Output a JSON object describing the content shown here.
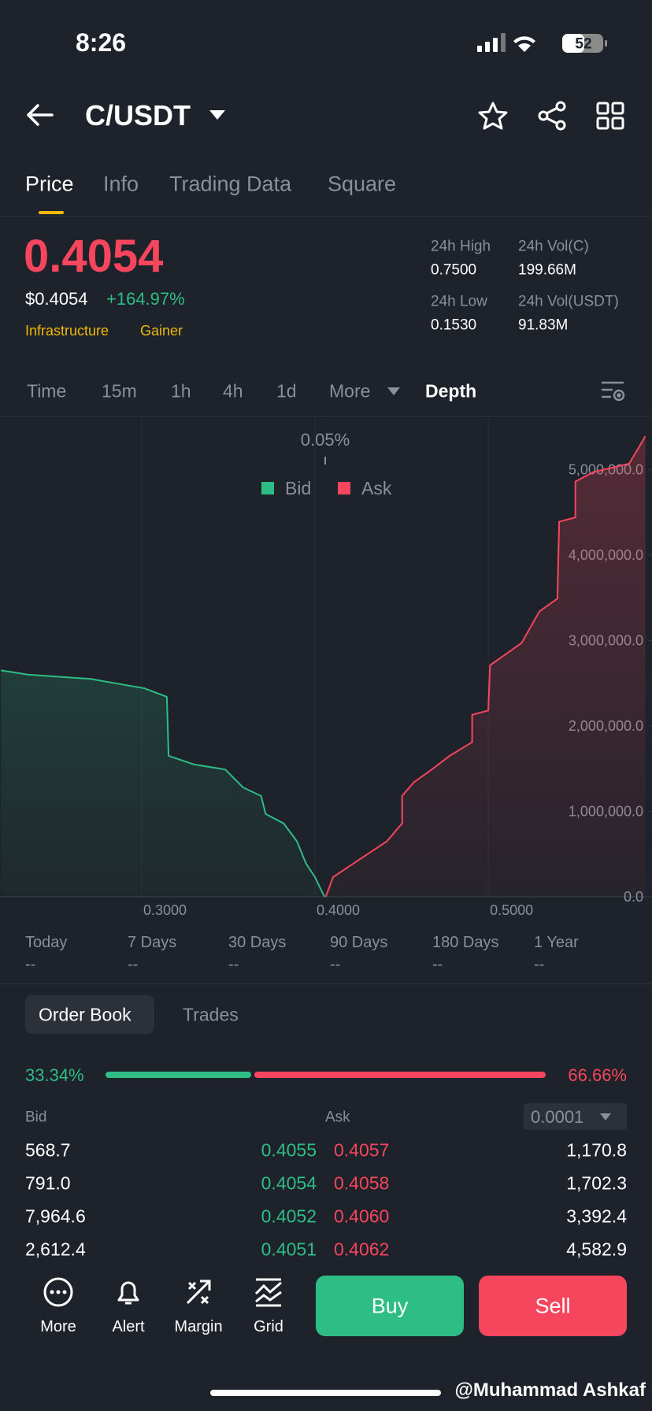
{
  "status_bar": {
    "time": "8:26",
    "battery": "52"
  },
  "header": {
    "pair": "C/USDT"
  },
  "tabs": [
    "Price",
    "Info",
    "Trading Data",
    "Square"
  ],
  "price": {
    "last": "0.4054",
    "usd": "$0.4054",
    "change": "+164.97%",
    "tags": [
      "Infrastructure",
      "Gainer"
    ]
  },
  "stats": [
    {
      "label": "24h High",
      "value": "0.7500"
    },
    {
      "label": "24h Vol(C)",
      "value": "199.66M"
    },
    {
      "label": "24h Low",
      "value": "0.1530"
    },
    {
      "label": "24h Vol(USDT)",
      "value": "91.83M"
    }
  ],
  "intervals": [
    "Time",
    "15m",
    "1h",
    "4h",
    "1d",
    "More",
    "Depth"
  ],
  "chart_data": {
    "type": "line",
    "spread_label": "0.05%",
    "series": [
      {
        "name": "Bid",
        "color": "#2ebd85",
        "x": [
          0.2187,
          0.2342,
          0.2705,
          0.3016,
          0.3145,
          0.3155,
          0.3301,
          0.3482,
          0.3585,
          0.3689,
          0.3715,
          0.3819,
          0.3896,
          0.3948,
          0.4,
          0.4055
        ],
        "values": [
          2650000,
          2600000,
          2550000,
          2440000,
          2340000,
          1650000,
          1550000,
          1490000,
          1280000,
          1180000,
          970000,
          860000,
          650000,
          390000,
          230000,
          0
        ]
      },
      {
        "name": "Ask",
        "color": "#f6465d",
        "x": [
          0.4062,
          0.4104,
          0.4259,
          0.4415,
          0.4503,
          0.4503,
          0.457,
          0.4674,
          0.4777,
          0.4907,
          0.4907,
          0.5,
          0.501,
          0.5192,
          0.5295,
          0.5399,
          0.5409,
          0.5503,
          0.5503,
          0.5606,
          0.5813,
          0.5907
        ],
        "values": [
          0,
          230000,
          440000,
          650000,
          860000,
          1180000,
          1340000,
          1490000,
          1650000,
          1810000,
          2130000,
          2180000,
          2710000,
          2970000,
          3340000,
          3490000,
          4390000,
          4440000,
          4860000,
          4970000,
          5070000,
          5390000
        ]
      }
    ],
    "xlim": [
      0.2182,
      0.5945
    ],
    "ylim": [
      0,
      5630000
    ],
    "xticks": [
      {
        "value": 0.3,
        "label": "0.3000"
      },
      {
        "value": 0.4,
        "label": "0.4000"
      },
      {
        "value": 0.5,
        "label": "0.5000"
      }
    ],
    "yticks": [
      {
        "value": 0,
        "label": "0.0"
      },
      {
        "value": 1000000,
        "label": "1,000,000.0"
      },
      {
        "value": 2000000,
        "label": "2,000,000.0"
      },
      {
        "value": 3000000,
        "label": "3,000,000.0"
      },
      {
        "value": 4000000,
        "label": "4,000,000.0"
      },
      {
        "value": 5000000,
        "label": "5,000,000.0"
      }
    ]
  },
  "periods": [
    {
      "label": "Today",
      "value": "--"
    },
    {
      "label": "7 Days",
      "value": "--"
    },
    {
      "label": "30 Days",
      "value": "--"
    },
    {
      "label": "90 Days",
      "value": "--"
    },
    {
      "label": "180 Days",
      "value": "--"
    },
    {
      "label": "1 Year",
      "value": "--"
    }
  ],
  "order_book": {
    "tabs": [
      "Order Book",
      "Trades"
    ],
    "ratio": {
      "values": [
        33.34,
        66.66
      ],
      "value_labels": [
        "33.34%",
        "66.66%"
      ]
    },
    "bid_header": "Bid",
    "ask_header": "Ask",
    "precision": "0.0001",
    "rows": [
      [
        "568.7",
        "0.4055",
        "0.4057",
        "1,170.8"
      ],
      [
        "791.0",
        "0.4054",
        "0.4058",
        "1,702.3"
      ],
      [
        "7,964.6",
        "0.4052",
        "0.4060",
        "3,392.4"
      ],
      [
        "2,612.4",
        "0.4051",
        "0.4062",
        "4,582.9"
      ]
    ]
  },
  "bottom_bar": {
    "actions": [
      "More",
      "Alert",
      "Margin",
      "Grid"
    ],
    "buy": "Buy",
    "sell": "Sell"
  },
  "watermark": "@Muhammad Ashkaf"
}
